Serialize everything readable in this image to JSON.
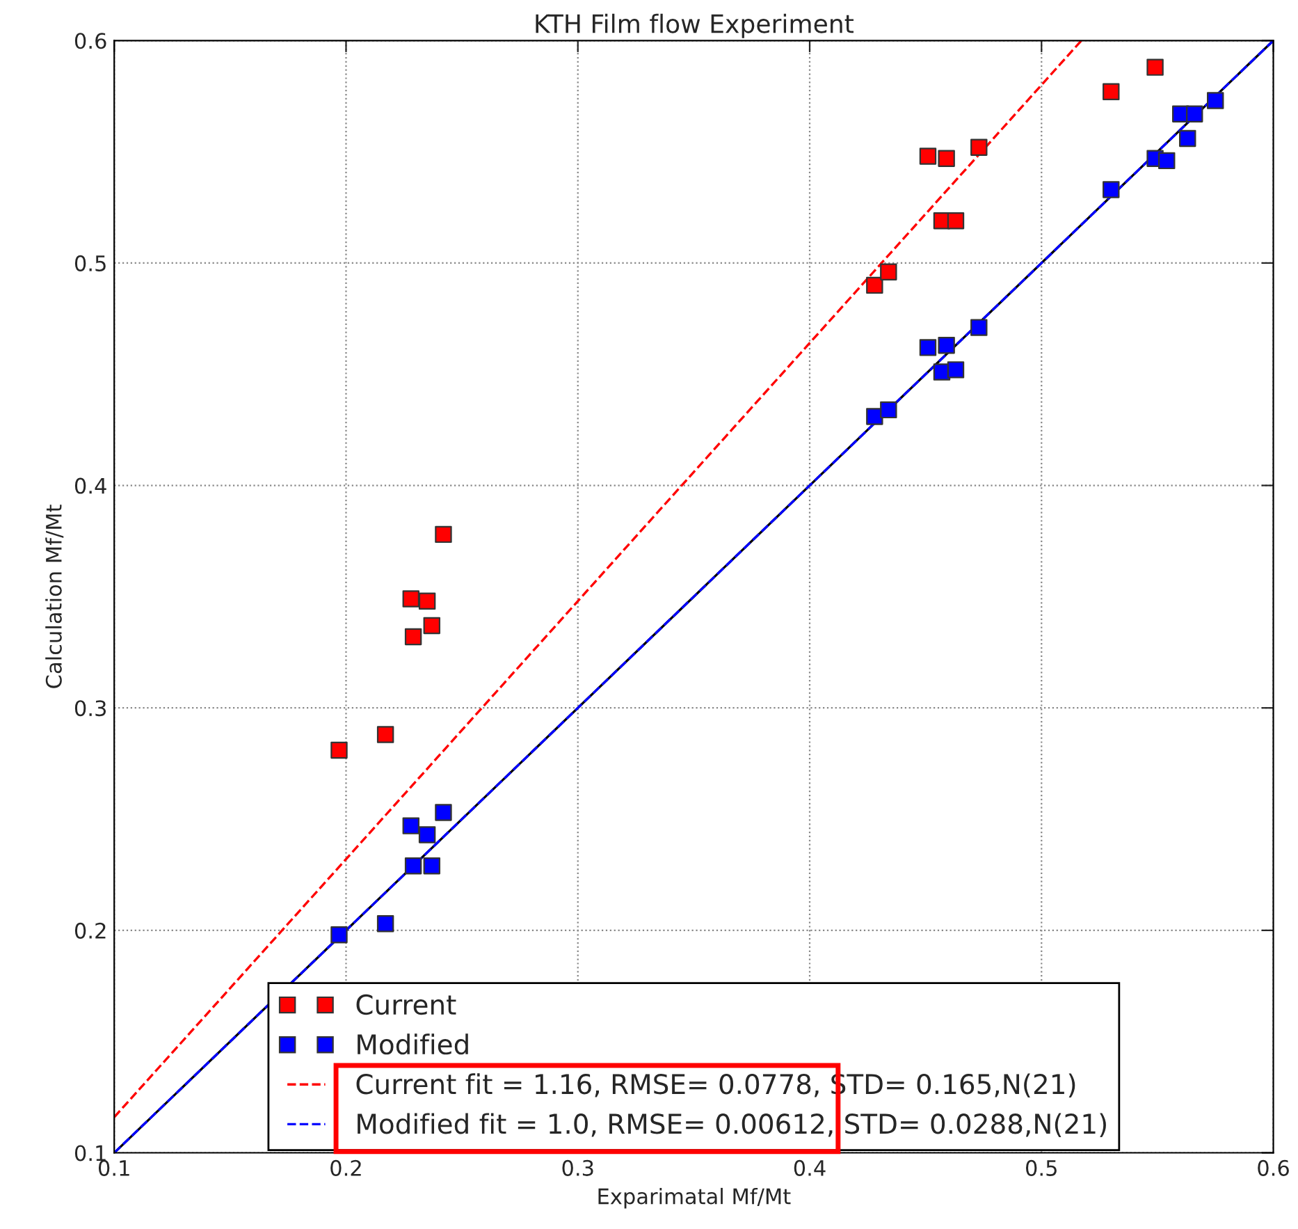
{
  "chart_data": {
    "type": "scatter",
    "title": "KTH Film flow Experiment",
    "xlabel": "Exparimatal Mf/Mt",
    "ylabel": "Calculation Mf/Mt",
    "xlim": [
      0.1,
      0.6
    ],
    "ylim": [
      0.1,
      0.6
    ],
    "xticks": [
      0.1,
      0.2,
      0.3,
      0.4,
      0.5,
      0.6
    ],
    "yticks": [
      0.1,
      0.2,
      0.3,
      0.4,
      0.5,
      0.6
    ],
    "grid": true,
    "legend": "bottom",
    "marker": "square",
    "series": [
      {
        "name": "Current",
        "color": "#ff0000",
        "x": [
          0.197,
          0.217,
          0.228,
          0.235,
          0.229,
          0.237,
          0.242,
          0.428,
          0.434,
          0.451,
          0.459,
          0.457,
          0.463,
          0.473,
          0.53,
          0.549
        ],
        "values": [
          0.281,
          0.288,
          0.349,
          0.348,
          0.332,
          0.337,
          0.378,
          0.49,
          0.496,
          0.548,
          0.547,
          0.519,
          0.519,
          0.552,
          0.577,
          0.588
        ]
      },
      {
        "name": "Modified",
        "color": "#0000ff",
        "x": [
          0.197,
          0.217,
          0.228,
          0.235,
          0.229,
          0.237,
          0.242,
          0.428,
          0.434,
          0.451,
          0.459,
          0.457,
          0.463,
          0.473,
          0.53,
          0.549,
          0.575,
          0.56,
          0.566,
          0.563,
          0.554
        ],
        "values": [
          0.198,
          0.203,
          0.247,
          0.243,
          0.229,
          0.229,
          0.253,
          0.431,
          0.434,
          0.462,
          0.463,
          0.451,
          0.452,
          0.471,
          0.533,
          0.547,
          0.573,
          0.567,
          0.567,
          0.556,
          0.546
        ]
      },
      {
        "type": "line",
        "color": "#000000",
        "line_style": "solid",
        "marker": "none",
        "x": [
          0.1,
          0.6
        ],
        "values": [
          0.1,
          0.6
        ]
      },
      {
        "type": "line",
        "name": "Current fit = 1.16, RMSE= 0.0778, STD= 0.165,N(21)",
        "color": "#ff0000",
        "line_style": "dashed",
        "marker": "none",
        "x": [
          0.1,
          0.5172
        ],
        "values": [
          0.116,
          0.6
        ]
      },
      {
        "type": "line",
        "name": "Modified fit = 1.0, RMSE= 0.00612, STD= 0.0288,N(21)",
        "color": "#0000ff",
        "line_style": "dashed",
        "marker": "none",
        "x": [
          0.1,
          0.6
        ],
        "values": [
          0.1,
          0.6
        ]
      }
    ]
  }
}
